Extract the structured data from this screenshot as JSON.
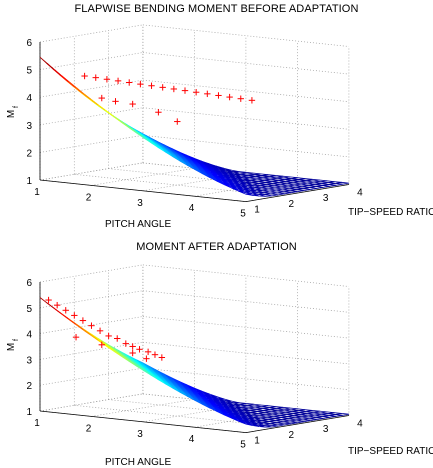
{
  "chart_data": [
    {
      "type": "surface3d",
      "title": "FLAPWISE BENDING MOMENT BEFORE ADAPTATION",
      "xlabel": "PITCH ANGLE",
      "ylabel": "TIP−SPEED RATIO",
      "zlabel": "M",
      "zlabel_sub": "f",
      "x_ticks": [
        1,
        2,
        3,
        4,
        5
      ],
      "y_ticks": [
        1,
        2,
        3,
        4
      ],
      "z_ticks": [
        1,
        2,
        3,
        4,
        5,
        6
      ],
      "xlim": [
        1,
        5
      ],
      "ylim": [
        1,
        4
      ],
      "zlim": [
        1,
        6
      ],
      "grid": true,
      "colormap": [
        "#00008f",
        "#0000ff",
        "#0080ff",
        "#00ffff",
        "#80ff80",
        "#ffff00",
        "#ff8000",
        "#ff0000",
        "#800000"
      ],
      "scatter_color": "#ff0000",
      "scatter_points": [
        {
          "x": 1.2,
          "y": 2.0,
          "z": 4.6
        },
        {
          "x": 1.35,
          "y": 2.1,
          "z": 4.55
        },
        {
          "x": 1.5,
          "y": 2.2,
          "z": 4.5
        },
        {
          "x": 1.65,
          "y": 2.3,
          "z": 4.45
        },
        {
          "x": 1.8,
          "y": 2.4,
          "z": 4.4
        },
        {
          "x": 1.95,
          "y": 2.5,
          "z": 4.35
        },
        {
          "x": 2.1,
          "y": 2.6,
          "z": 4.3
        },
        {
          "x": 2.25,
          "y": 2.7,
          "z": 4.25
        },
        {
          "x": 2.4,
          "y": 2.8,
          "z": 4.2
        },
        {
          "x": 2.55,
          "y": 2.9,
          "z": 4.15
        },
        {
          "x": 2.7,
          "y": 3.0,
          "z": 4.1
        },
        {
          "x": 2.85,
          "y": 3.1,
          "z": 4.05
        },
        {
          "x": 3.0,
          "y": 3.2,
          "z": 4.0
        },
        {
          "x": 3.15,
          "y": 3.3,
          "z": 3.95
        },
        {
          "x": 3.3,
          "y": 3.4,
          "z": 3.9
        },
        {
          "x": 3.45,
          "y": 3.5,
          "z": 3.85
        },
        {
          "x": 1.6,
          "y": 1.9,
          "z": 3.9
        },
        {
          "x": 1.8,
          "y": 2.0,
          "z": 3.8
        },
        {
          "x": 2.0,
          "y": 2.2,
          "z": 3.7
        },
        {
          "x": 2.3,
          "y": 2.5,
          "z": 3.4
        },
        {
          "x": 2.6,
          "y": 2.6,
          "z": 3.1
        }
      ]
    },
    {
      "type": "surface3d",
      "title": "MOMENT AFTER ADAPTATION",
      "xlabel": "PITCH ANGLE",
      "ylabel": "TIP−SPEED RATIO",
      "zlabel": "M",
      "zlabel_sub": "f",
      "x_ticks": [
        1,
        2,
        3,
        4,
        5
      ],
      "y_ticks": [
        1,
        2,
        3,
        4
      ],
      "z_ticks": [
        1,
        2,
        3,
        4,
        5,
        6
      ],
      "xlim": [
        1,
        5
      ],
      "ylim": [
        1,
        4
      ],
      "zlim": [
        1,
        6
      ],
      "grid": true,
      "colormap": [
        "#00008f",
        "#0000ff",
        "#0080ff",
        "#00ffff",
        "#80ff80",
        "#ffff00",
        "#ff8000",
        "#ff0000",
        "#800000"
      ],
      "scatter_color": "#ff0000",
      "scatter_points": [
        {
          "x": 1.1,
          "y": 1.1,
          "z": 5.3
        },
        {
          "x": 1.2,
          "y": 1.2,
          "z": 5.1
        },
        {
          "x": 1.3,
          "y": 1.3,
          "z": 4.9
        },
        {
          "x": 1.4,
          "y": 1.4,
          "z": 4.7
        },
        {
          "x": 1.5,
          "y": 1.5,
          "z": 4.5
        },
        {
          "x": 1.6,
          "y": 1.6,
          "z": 4.3
        },
        {
          "x": 1.7,
          "y": 1.7,
          "z": 4.1
        },
        {
          "x": 1.8,
          "y": 1.8,
          "z": 3.9
        },
        {
          "x": 1.9,
          "y": 1.9,
          "z": 3.8
        },
        {
          "x": 2.0,
          "y": 2.0,
          "z": 3.6
        },
        {
          "x": 2.1,
          "y": 2.05,
          "z": 3.5
        },
        {
          "x": 2.2,
          "y": 2.1,
          "z": 3.4
        },
        {
          "x": 2.3,
          "y": 2.2,
          "z": 3.3
        },
        {
          "x": 2.4,
          "y": 2.25,
          "z": 3.2
        },
        {
          "x": 2.5,
          "y": 2.3,
          "z": 3.1
        },
        {
          "x": 1.5,
          "y": 1.3,
          "z": 3.9
        },
        {
          "x": 1.8,
          "y": 1.6,
          "z": 3.6
        },
        {
          "x": 2.2,
          "y": 1.9,
          "z": 3.3
        },
        {
          "x": 2.4,
          "y": 2.0,
          "z": 3.1
        }
      ]
    }
  ]
}
